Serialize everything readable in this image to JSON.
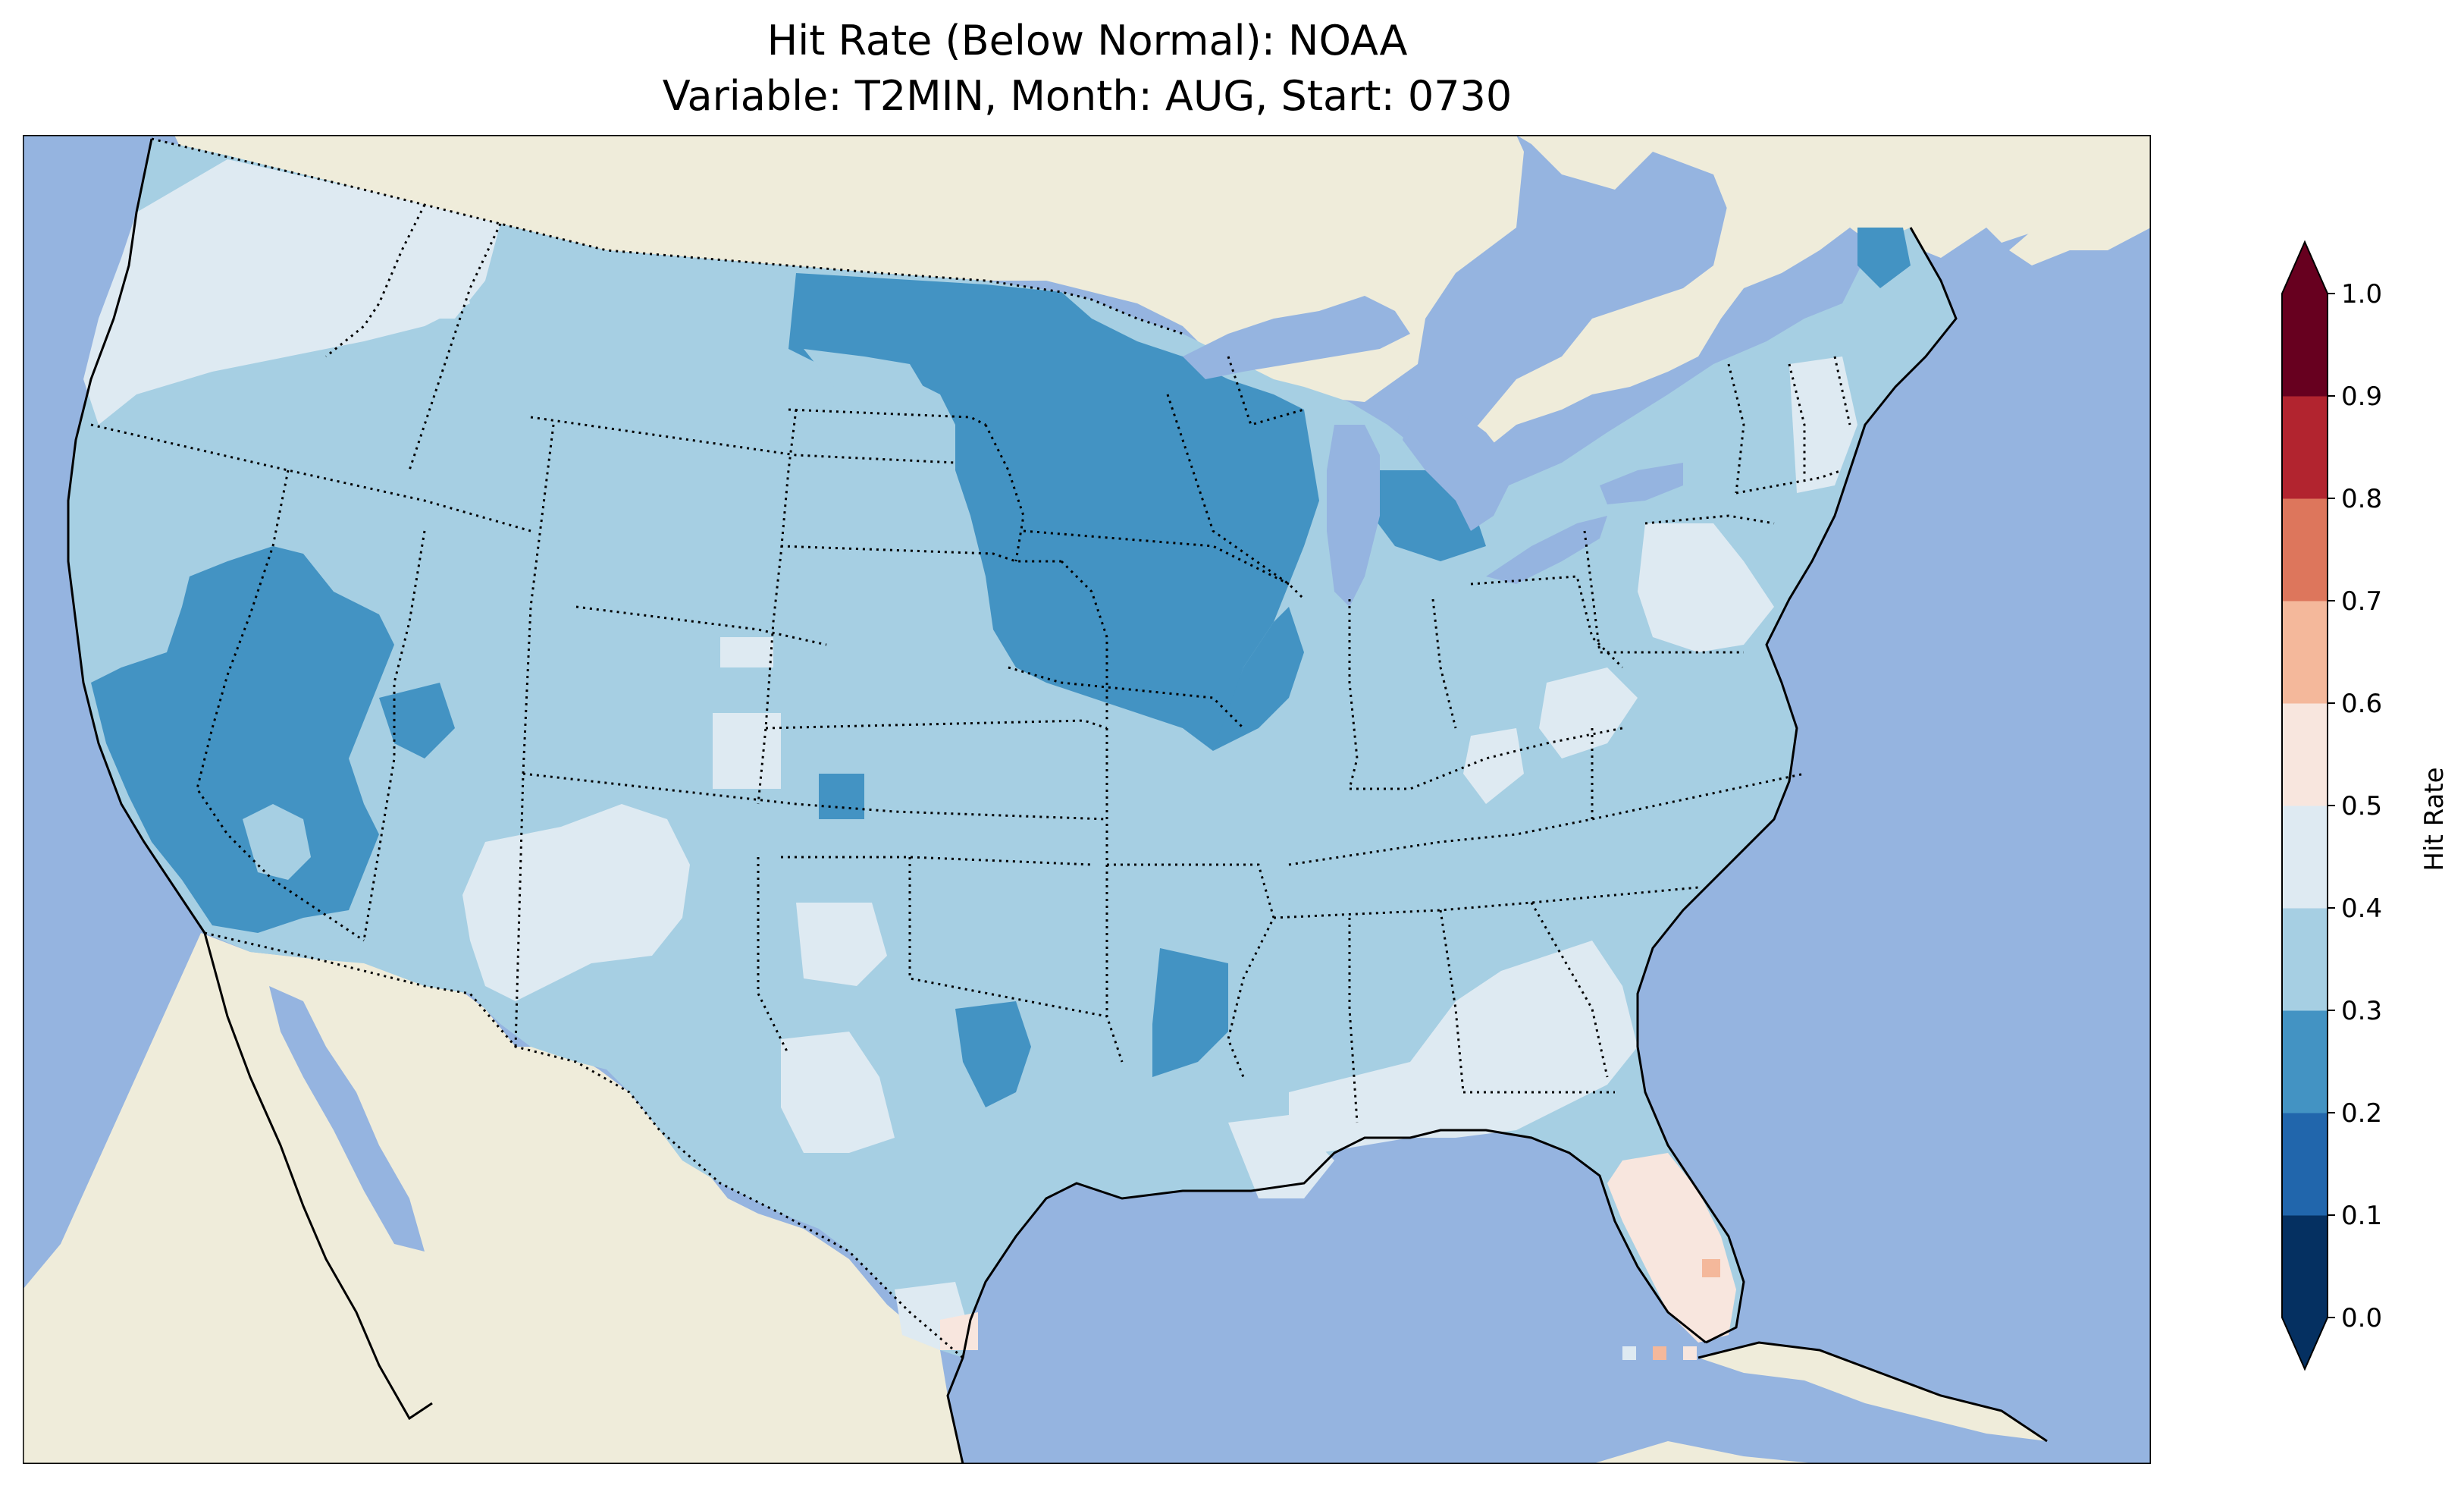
{
  "title": {
    "line1": "Hit Rate (Below Normal): NOAA",
    "line2": "Variable: T2MIN, Month: AUG, Start: 0730"
  },
  "colors": {
    "ocean": "#95b4e0",
    "land": "#efecda",
    "lake": "#95b4e0"
  },
  "colorbar": {
    "label": "Hit Rate",
    "ticks": [
      "0.0",
      "0.1",
      "0.2",
      "0.3",
      "0.4",
      "0.5",
      "0.6",
      "0.7",
      "0.8",
      "0.9",
      "1.0"
    ],
    "bins": [
      {
        "range": [
          0.0,
          0.1
        ],
        "color": "#053061"
      },
      {
        "range": [
          0.1,
          0.2
        ],
        "color": "#2166ac"
      },
      {
        "range": [
          0.2,
          0.3
        ],
        "color": "#4393c3"
      },
      {
        "range": [
          0.3,
          0.4
        ],
        "color": "#a6cfe3"
      },
      {
        "range": [
          0.4,
          0.5
        ],
        "color": "#deeaf2"
      },
      {
        "range": [
          0.5,
          0.6
        ],
        "color": "#f8e6de"
      },
      {
        "range": [
          0.6,
          0.7
        ],
        "color": "#f4b89b"
      },
      {
        "range": [
          0.7,
          0.8
        ],
        "color": "#dd765c"
      },
      {
        "range": [
          0.8,
          0.9
        ],
        "color": "#b2242f"
      },
      {
        "range": [
          0.9,
          1.0
        ],
        "color": "#67001f"
      }
    ],
    "extend": "both"
  },
  "map_data": {
    "region": "Contiguous United States",
    "dominant_value_range": [
      0.3,
      0.4
    ],
    "regions": [
      {
        "area": "Northern Plains / Upper Midwest (MN, IA, WI, eastern ND/SD)",
        "value_range": [
          0.2,
          0.3
        ]
      },
      {
        "area": "California / Nevada interior",
        "value_range": [
          0.2,
          0.3
        ]
      },
      {
        "area": "Pacific Northwest (WA, northern ID)",
        "value_range": [
          0.4,
          0.5
        ]
      },
      {
        "area": "Southwest (NM, eastern AZ, west Texas)",
        "value_range": [
          0.4,
          0.5
        ]
      },
      {
        "area": "Southeast (GA, SC, north FL)",
        "value_range": [
          0.4,
          0.5
        ]
      },
      {
        "area": "Florida peninsula",
        "value_range": [
          0.5,
          0.6
        ]
      },
      {
        "area": "South Florida spots",
        "value_range": [
          0.6,
          0.7
        ]
      },
      {
        "area": "Maine",
        "value_range": [
          0.2,
          0.3
        ]
      }
    ]
  }
}
